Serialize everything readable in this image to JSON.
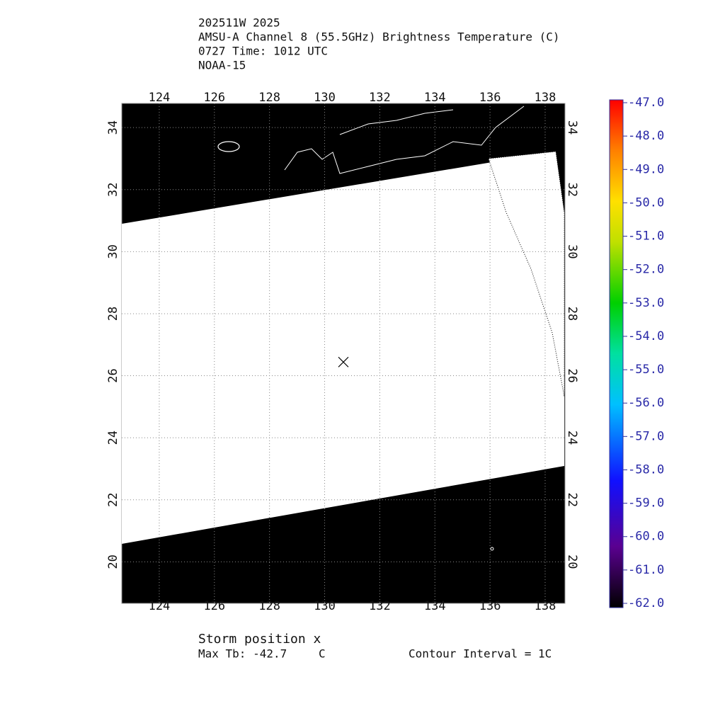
{
  "header": {
    "lines": [
      "202511W 2025",
      "AMSU-A Channel 8 (55.5GHz) Brightness Temperature (C)",
      "0727 Time: 1012 UTC",
      "NOAA-15"
    ]
  },
  "map": {
    "xlim": [
      122.64,
      138.72
    ],
    "ylim": [
      18.66,
      34.78
    ],
    "xticks": [
      124,
      126,
      128,
      130,
      132,
      134,
      136,
      138
    ],
    "yticks": [
      20,
      22,
      24,
      26,
      28,
      30,
      32,
      34
    ],
    "storm": {
      "lon": 130.68,
      "lat": 26.44
    }
  },
  "colorbar": {
    "lim": [
      -62,
      -47
    ],
    "ticks": [
      {
        "value": -47,
        "label": "-47.0"
      },
      {
        "value": -48,
        "label": "-48.0"
      },
      {
        "value": -49,
        "label": "-49.0"
      },
      {
        "value": -50,
        "label": "-50.0"
      },
      {
        "value": -51,
        "label": "-51.0"
      },
      {
        "value": -52,
        "label": "-52.0"
      },
      {
        "value": -53,
        "label": "-53.0"
      },
      {
        "value": -54,
        "label": "-54.0"
      },
      {
        "value": -55,
        "label": "-55.0"
      },
      {
        "value": -56,
        "label": "-56.0"
      },
      {
        "value": -57,
        "label": "-57.0"
      },
      {
        "value": -58,
        "label": "-58.0"
      },
      {
        "value": -59,
        "label": "-59.0"
      },
      {
        "value": -60,
        "label": "-60.0"
      },
      {
        "value": -61,
        "label": "-61.0"
      },
      {
        "value": -62,
        "label": "-62.0"
      }
    ]
  },
  "footer": {
    "storm_label": "Storm position x",
    "max_tb": "Max Tb: -42.7",
    "max_tb_unit": "C",
    "contour": "Contour Interval = 1C"
  }
}
